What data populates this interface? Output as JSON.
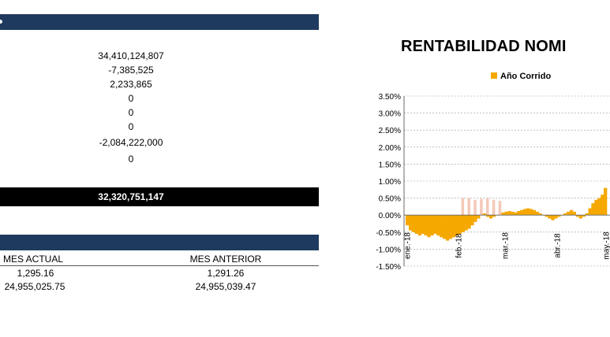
{
  "top_section": {
    "values": [
      "34,410,124,807",
      "-7,385,525",
      "2,233,865",
      "0",
      "0",
      "0",
      "-2,084,222,000",
      "0"
    ],
    "total": "32,320,751,147"
  },
  "table": {
    "headers": [
      "MES ACTUAL",
      "MES ANTERIOR"
    ],
    "rows": [
      [
        "1,295.16",
        "1,291.26"
      ],
      [
        "24,955,025.75",
        "24,955,039.47"
      ]
    ]
  },
  "chart_data": {
    "type": "bar",
    "title": "RENTABILIDAD NOMI",
    "legend": "Año Corrido",
    "legend_position": "top",
    "colors": {
      "series": "#f5a800",
      "faded": "#f4c9b8"
    },
    "y_ticks": [
      "3.50%",
      "3.00%",
      "2.50%",
      "2.00%",
      "1.50%",
      "1.00%",
      "0.50%",
      "0.00%",
      "-0.50%",
      "-1.00%",
      "-1.50%"
    ],
    "ylim": [
      -1.5,
      3.5
    ],
    "x_ticks": [
      "ene.-18",
      "feb.-18",
      "mar.-18",
      "abr.-18",
      "may.-18"
    ],
    "grid": true,
    "series": [
      {
        "values": [
          -0.3,
          -0.45,
          -0.5,
          -0.55,
          -0.6,
          -0.55,
          -0.6,
          -0.65,
          -0.6,
          -0.55,
          -0.6,
          -0.65,
          -0.7,
          -0.75,
          -0.7,
          -0.65,
          -0.6,
          -0.55,
          -0.5,
          -0.45,
          -0.4,
          -0.3,
          -0.2,
          -0.1,
          0.05,
          0.05,
          -0.05,
          -0.1,
          -0.05,
          0.0,
          0.05,
          0.08,
          0.1,
          0.12,
          0.1,
          0.08,
          0.12,
          0.15,
          0.18,
          0.2,
          0.18,
          0.15,
          0.1,
          0.05,
          0.0,
          -0.05,
          -0.1,
          -0.15,
          -0.1,
          -0.05,
          0.0,
          0.05,
          0.1,
          0.15,
          0.1,
          -0.05,
          -0.1,
          -0.05,
          0.05,
          0.2,
          0.35,
          0.45,
          0.5,
          0.6,
          0.8
        ]
      },
      {
        "values": [
          0.5,
          0.5,
          0.45,
          0.48,
          0.5,
          0.45,
          0.42
        ]
      }
    ]
  }
}
